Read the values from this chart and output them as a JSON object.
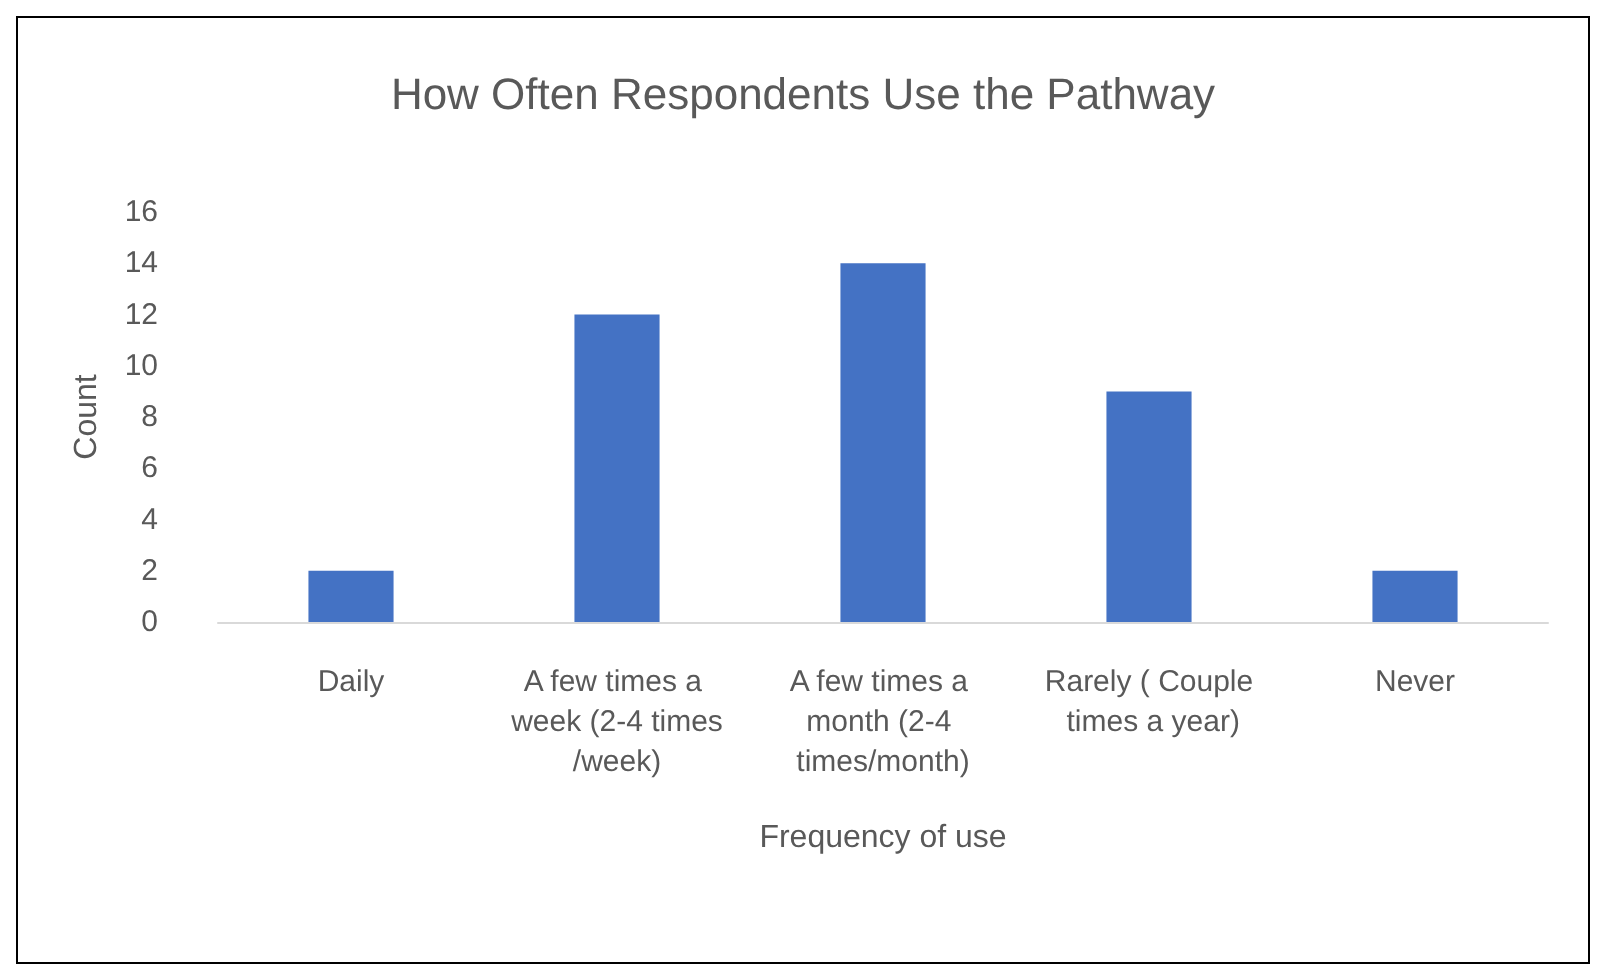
{
  "chart_data": {
    "type": "bar",
    "title": "How Often Respondents Use the Pathway",
    "xlabel": "Frequency of use",
    "ylabel": "Count",
    "categories": [
      "Daily",
      "A few times a week (2-4 times/week)",
      "A few times a month (2-4 times/month)",
      "Rarely ( Couple times a year)",
      "Never"
    ],
    "values": [
      2,
      12,
      14,
      9,
      2
    ],
    "color": "#4472c4",
    "ylim": [
      0,
      16
    ],
    "yticks": [
      0,
      2,
      4,
      6,
      8,
      10,
      12,
      14,
      16
    ],
    "grid": false
  }
}
